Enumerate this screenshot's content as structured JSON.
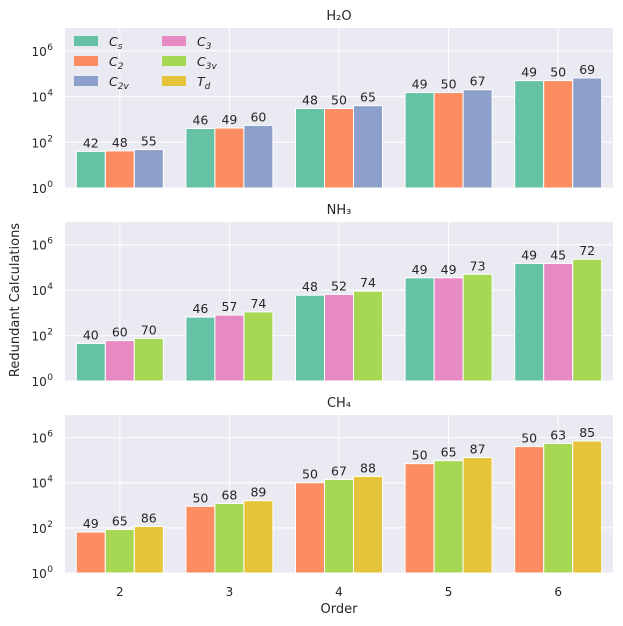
{
  "chart_data": [
    {
      "type": "bar",
      "title": "H₂O",
      "categories": [
        "2",
        "3",
        "4",
        "5",
        "6"
      ],
      "xlabel": "",
      "ylabel": "Redundant Calculations",
      "yscale": "log",
      "ylim_exponent": [
        0,
        7
      ],
      "series": [
        {
          "name": "Cs",
          "color": "#66c2a5",
          "values": [
            40,
            400,
            3000,
            15000,
            50000
          ],
          "labels": [
            "42",
            "46",
            "48",
            "49",
            "49"
          ]
        },
        {
          "name": "C2",
          "color": "#fc8d62",
          "values": [
            42,
            420,
            3000,
            15000,
            50000
          ],
          "labels": [
            "48",
            "49",
            "50",
            "50",
            "50"
          ]
        },
        {
          "name": "C2v",
          "color": "#8da0cb",
          "values": [
            48,
            550,
            4000,
            20000,
            65000
          ],
          "labels": [
            "55",
            "60",
            "65",
            "67",
            "69"
          ]
        }
      ]
    },
    {
      "type": "bar",
      "title": "NH₃",
      "categories": [
        "2",
        "3",
        "4",
        "5",
        "6"
      ],
      "xlabel": "",
      "yscale": "log",
      "ylim_exponent": [
        0,
        7
      ],
      "series": [
        {
          "name": "Cs",
          "color": "#66c2a5",
          "values": [
            45,
            650,
            6000,
            35000,
            150000
          ],
          "labels": [
            "40",
            "46",
            "48",
            "49",
            "49"
          ]
        },
        {
          "name": "C3",
          "color": "#e78ac3",
          "values": [
            60,
            800,
            6500,
            35000,
            150000
          ],
          "labels": [
            "60",
            "57",
            "52",
            "49",
            "45"
          ]
        },
        {
          "name": "C3v",
          "color": "#a6d854",
          "values": [
            75,
            1100,
            9000,
            50000,
            230000
          ],
          "labels": [
            "70",
            "74",
            "74",
            "73",
            "72"
          ]
        }
      ]
    },
    {
      "type": "bar",
      "title": "CH₄",
      "categories": [
        "2",
        "3",
        "4",
        "5",
        "6"
      ],
      "xlabel": "Order",
      "yscale": "log",
      "ylim_exponent": [
        0,
        7
      ],
      "series": [
        {
          "name": "C2",
          "color": "#fc8d62",
          "values": [
            65,
            900,
            10000,
            70000,
            400000
          ],
          "labels": [
            "49",
            "50",
            "50",
            "50",
            "50"
          ]
        },
        {
          "name": "C3v",
          "color": "#a6d854",
          "values": [
            85,
            1200,
            14000,
            95000,
            550000
          ],
          "labels": [
            "65",
            "68",
            "67",
            "65",
            "63"
          ]
        },
        {
          "name": "Td",
          "color": "#e5c43c",
          "values": [
            115,
            1600,
            19000,
            130000,
            700000
          ],
          "labels": [
            "86",
            "89",
            "88",
            "87",
            "85"
          ]
        }
      ]
    }
  ],
  "legend": {
    "placement": "top-left",
    "items": [
      {
        "sym": "C",
        "sub": "s",
        "color": "#66c2a5"
      },
      {
        "sym": "C",
        "sub": "2",
        "color": "#fc8d62"
      },
      {
        "sym": "C",
        "sub": "2v",
        "color": "#8da0cb"
      },
      {
        "sym": "C",
        "sub": "3",
        "color": "#e78ac3"
      },
      {
        "sym": "C",
        "sub": "3v",
        "color": "#a6d854"
      },
      {
        "sym": "T",
        "sub": "d",
        "color": "#e5c43c"
      }
    ]
  },
  "y_ticks": [
    {
      "base": "10",
      "exp": "0"
    },
    {
      "base": "10",
      "exp": "2"
    },
    {
      "base": "10",
      "exp": "4"
    },
    {
      "base": "10",
      "exp": "6"
    }
  ]
}
